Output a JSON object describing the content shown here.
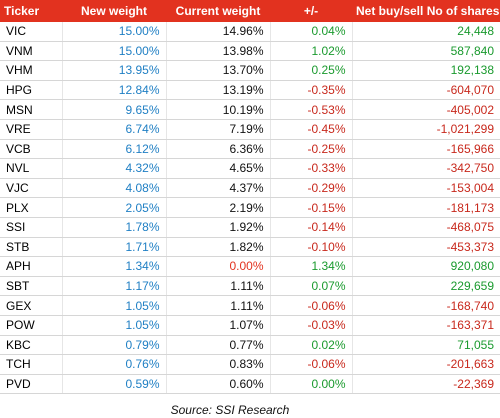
{
  "table": {
    "header": [
      "Ticker",
      "New weight",
      "Current weight",
      "+/-",
      "Net buy/sell No of shares"
    ],
    "rows": [
      [
        "VIC",
        "15.00%",
        "14.96%",
        "0.04%",
        "24,448"
      ],
      [
        "VNM",
        "15.00%",
        "13.98%",
        "1.02%",
        "587,840"
      ],
      [
        "VHM",
        "13.95%",
        "13.70%",
        "0.25%",
        "192,138"
      ],
      [
        "HPG",
        "12.84%",
        "13.19%",
        "-0.35%",
        "-604,070"
      ],
      [
        "MSN",
        "9.65%",
        "10.19%",
        "-0.53%",
        "-405,002"
      ],
      [
        "VRE",
        "6.74%",
        "7.19%",
        "-0.45%",
        "-1,021,299"
      ],
      [
        "VCB",
        "6.12%",
        "6.36%",
        "-0.25%",
        "-165,966"
      ],
      [
        "NVL",
        "4.32%",
        "4.65%",
        "-0.33%",
        "-342,750"
      ],
      [
        "VJC",
        "4.08%",
        "4.37%",
        "-0.29%",
        "-153,004"
      ],
      [
        "PLX",
        "2.05%",
        "2.19%",
        "-0.15%",
        "-181,173"
      ],
      [
        "SSI",
        "1.78%",
        "1.92%",
        "-0.14%",
        "-468,075"
      ],
      [
        "STB",
        "1.71%",
        "1.82%",
        "-0.10%",
        "-453,373"
      ],
      [
        "APH",
        "1.34%",
        "0.00%",
        "1.34%",
        "920,080"
      ],
      [
        "SBT",
        "1.17%",
        "1.11%",
        "0.07%",
        "229,659"
      ],
      [
        "GEX",
        "1.05%",
        "1.11%",
        "-0.06%",
        "-168,740"
      ],
      [
        "POW",
        "1.05%",
        "1.07%",
        "-0.03%",
        "-163,371"
      ],
      [
        "KBC",
        "0.79%",
        "0.77%",
        "0.02%",
        "71,055"
      ],
      [
        "TCH",
        "0.76%",
        "0.83%",
        "-0.06%",
        "-201,663"
      ],
      [
        "PVD",
        "0.59%",
        "0.60%",
        "0.00%",
        "-22,369"
      ]
    ]
  },
  "source": "Source: SSI Research"
}
